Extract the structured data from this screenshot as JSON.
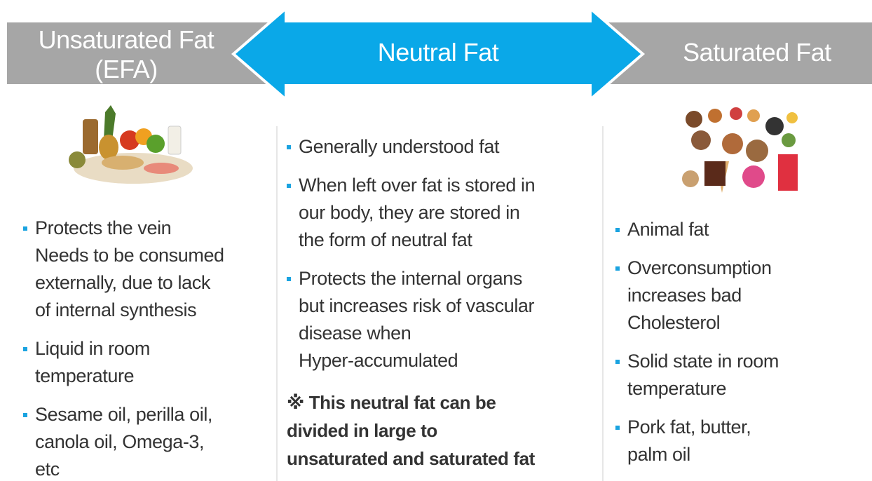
{
  "header": {
    "left": [
      "Unsaturated Fat",
      "(EFA)"
    ],
    "center": "Neutral Fat",
    "right": "Saturated Fat"
  },
  "columns": [
    {
      "items": [
        [
          "Protects the vein",
          "Needs to be consumed",
          "externally, due to lack",
          "of internal synthesis"
        ],
        [
          "Liquid in room",
          "temperature"
        ],
        [
          "Sesame oil, perilla oil,",
          "canola oil, Omega-3,",
          "etc"
        ]
      ]
    },
    {
      "items": [
        [
          "Generally understood fat"
        ],
        [
          "When left over fat is stored in",
          "our body, they are stored in",
          "the form of neutral fat"
        ],
        [
          "Protects the internal organs",
          "but increases risk of vascular",
          "disease when",
          "Hyper-accumulated"
        ]
      ],
      "note": [
        "※ This neutral fat can be",
        "divided in large to",
        "unsaturated and saturated fat"
      ]
    },
    {
      "items": [
        [
          "Animal fat"
        ],
        [
          "Overconsumption",
          "increases bad",
          "Cholesterol"
        ],
        [
          "Solid state in room",
          "temperature"
        ],
        [
          "Pork fat, butter,",
          "palm oil"
        ]
      ]
    }
  ]
}
